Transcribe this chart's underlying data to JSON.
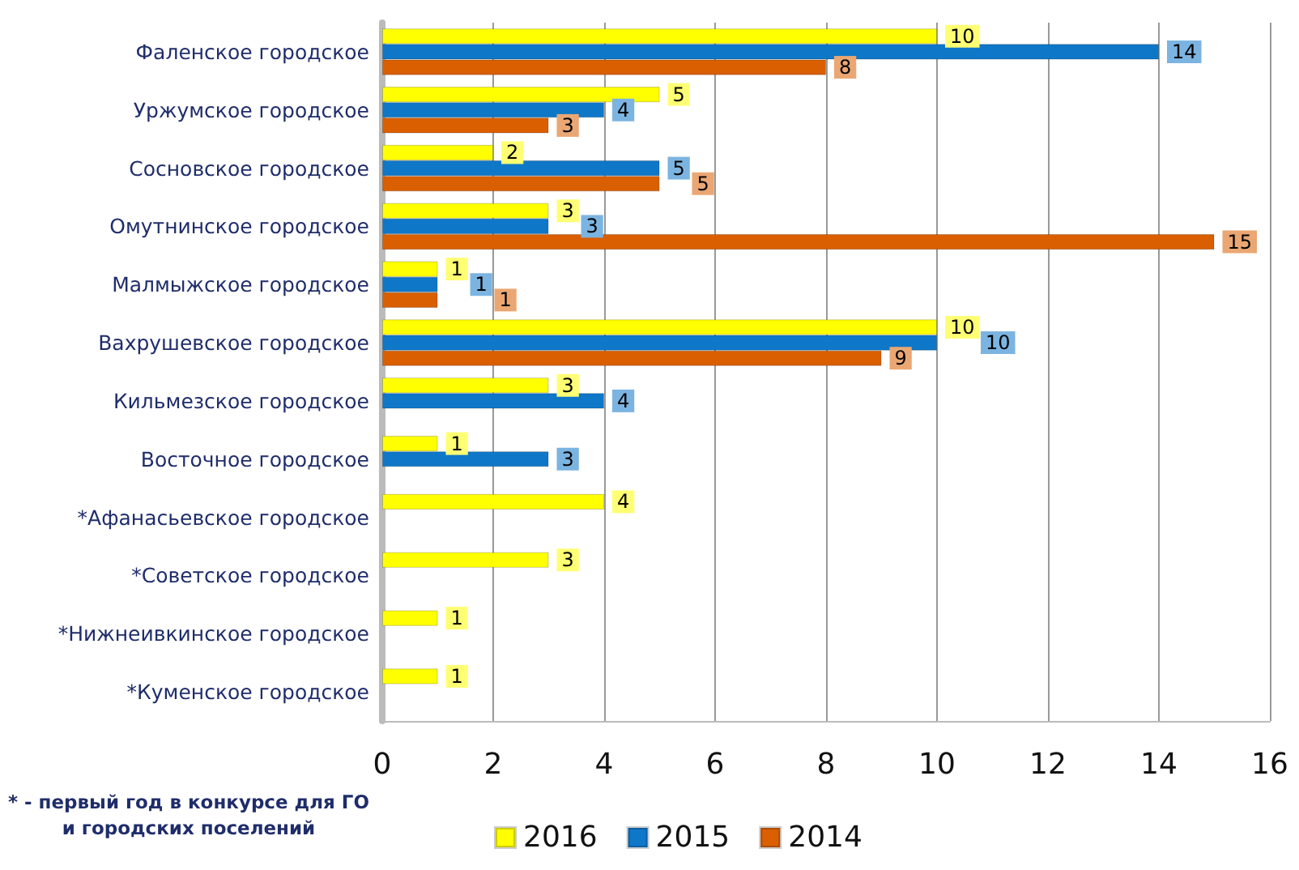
{
  "chart_data": {
    "type": "bar",
    "orientation": "horizontal",
    "categories": [
      "Фаленское городское",
      "Уржумское городское",
      "Сосновское городское",
      "Омутнинское городское",
      "Малмыжское городское",
      "Вахрушевское городское",
      "Кильмезское городское",
      "Восточное городское",
      "*Афанасьевское городское",
      "*Советское городское",
      "*Нижнеивкинское городское",
      "*Куменское городское"
    ],
    "series": [
      {
        "name": "2016",
        "color": "#ffff00",
        "values": [
          10,
          5,
          2,
          3,
          1,
          10,
          3,
          1,
          4,
          3,
          1,
          1
        ]
      },
      {
        "name": "2015",
        "color": "#0f77c8",
        "values": [
          14,
          4,
          5,
          3,
          1,
          10,
          4,
          3,
          null,
          null,
          null,
          null
        ]
      },
      {
        "name": "2014",
        "color": "#d95f00",
        "values": [
          8,
          3,
          5,
          15,
          1,
          9,
          null,
          null,
          null,
          null,
          null,
          null
        ]
      }
    ],
    "xlim": [
      0,
      16
    ],
    "xticks": [
      0,
      2,
      4,
      6,
      8,
      10,
      12,
      14,
      16
    ],
    "grid": "x",
    "legend": "bottom",
    "data_labels": true,
    "annotations": [
      "* - первый  год в конкурсе для ГО и городских поселений"
    ]
  }
}
